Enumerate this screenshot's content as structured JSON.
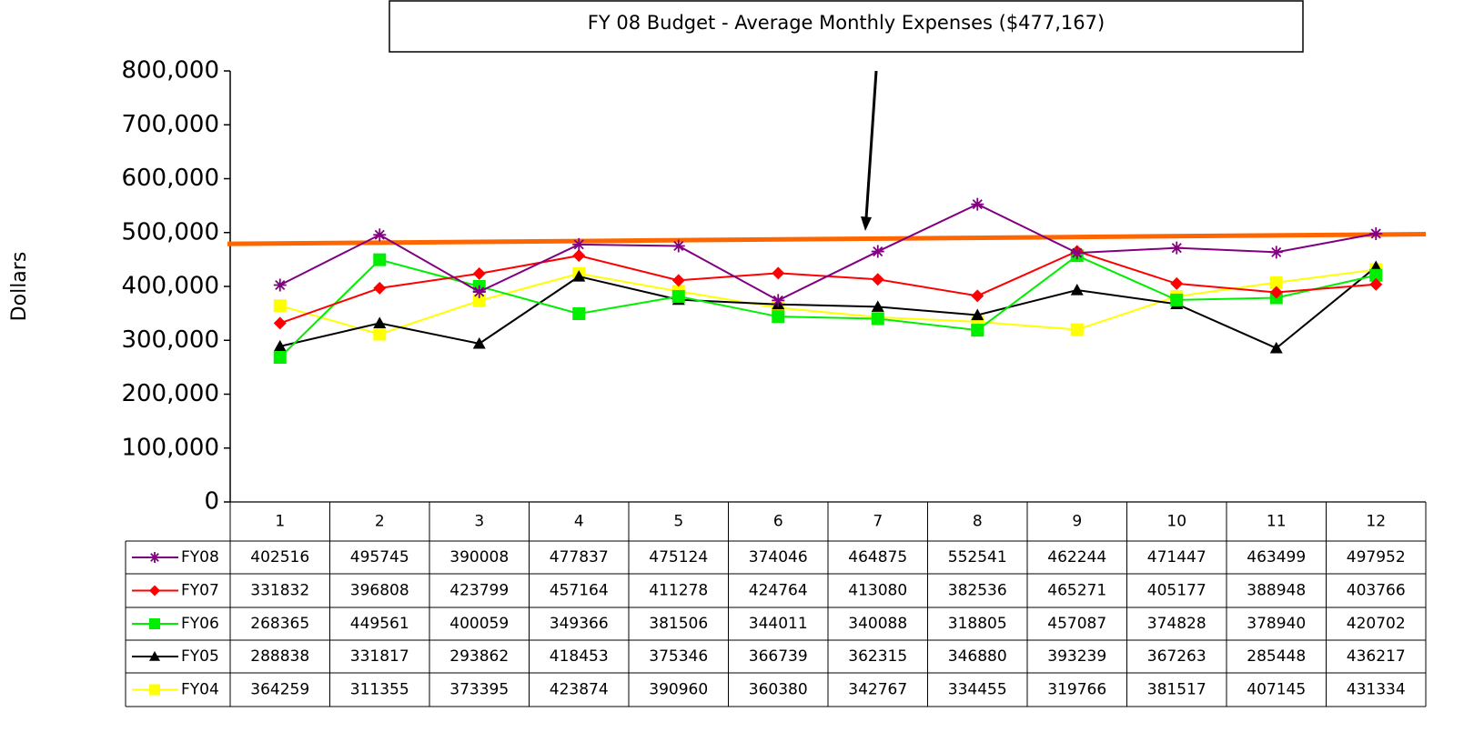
{
  "chart_data": {
    "type": "line",
    "annotation": "FY 08  Budget - Average Monthly Expenses  ($477,167)",
    "y_label": "Dollars",
    "categories": [
      "1",
      "2",
      "3",
      "4",
      "5",
      "6",
      "7",
      "8",
      "9",
      "10",
      "11",
      "12"
    ],
    "ylim": [
      0,
      800000
    ],
    "yticks": [
      0,
      {
        "value": 100000,
        "label": "100,000"
      },
      {
        "value": 200000,
        "label": "200,000"
      },
      {
        "value": 300000,
        "label": "300,000"
      },
      {
        "value": 400000,
        "label": "400,000"
      },
      {
        "value": 500000,
        "label": "500,000"
      },
      {
        "value": 600000,
        "label": "600,000"
      },
      {
        "value": 700000,
        "label": "700,000"
      },
      {
        "value": 800000,
        "label": "800,000"
      }
    ],
    "reference_line": {
      "values": [
        479000,
        497000
      ],
      "color": "#ff6600"
    },
    "series": [
      {
        "name": "FY08",
        "color": "#800080",
        "marker": "star",
        "values": [
          402516,
          495745,
          390008,
          477837,
          475124,
          374046,
          464875,
          552541,
          462244,
          471447,
          463499,
          497952
        ]
      },
      {
        "name": "FY07",
        "color": "#ff0000",
        "marker": "diamond",
        "values": [
          331832,
          396808,
          423799,
          457164,
          411278,
          424764,
          413080,
          382536,
          465271,
          405177,
          388948,
          403766
        ]
      },
      {
        "name": "FY06",
        "color": "#00ee00",
        "marker": "square",
        "values": [
          268365,
          449561,
          400059,
          349366,
          381506,
          344011,
          340088,
          318805,
          457087,
          374828,
          378940,
          420702
        ]
      },
      {
        "name": "FY05",
        "color": "#000000",
        "marker": "triangle",
        "values": [
          288838,
          331817,
          293862,
          418453,
          375346,
          366739,
          362315,
          346880,
          393239,
          367263,
          285448,
          436217
        ]
      },
      {
        "name": "FY04",
        "color": "#ffff00",
        "marker": "square",
        "values": [
          364259,
          311355,
          373395,
          423874,
          390960,
          360380,
          342767,
          334455,
          319766,
          381517,
          407145,
          431334
        ]
      }
    ]
  }
}
